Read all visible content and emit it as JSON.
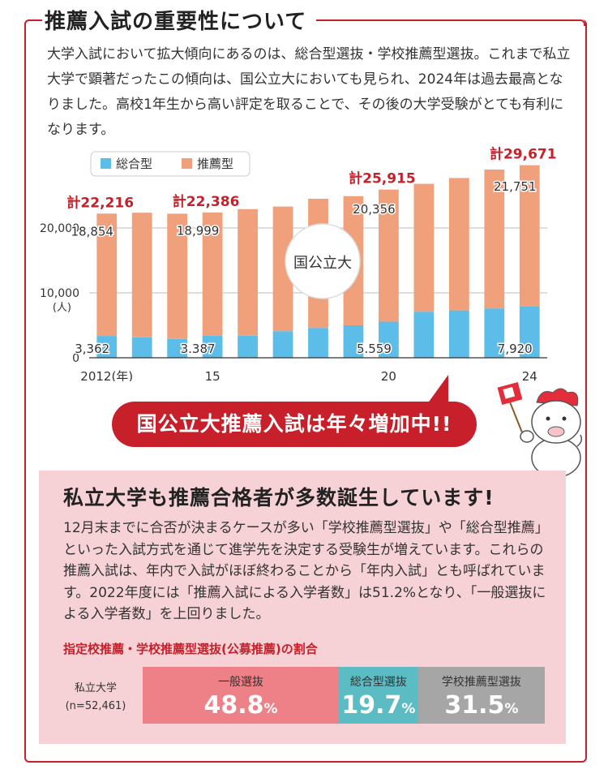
{
  "title": "推薦入試の重要性について",
  "intro": "大学入試において拡大傾向にあるのは、総合型選抜・学校推薦型選抜。これまで私立大学で顕著だったこの傾向は、国公立大においても見られ、2024年は過去最高となりました。高校1年生から高い評定を取ることで、その後の大学受験がとても有利になります。",
  "chart_data": {
    "type": "bar",
    "stacked": true,
    "categories": [
      "2012(年)",
      "",
      "",
      "15",
      "",
      "",
      "",
      "",
      "20",
      "",
      "",
      "",
      "24"
    ],
    "x": [
      2012,
      2013,
      2014,
      2015,
      2016,
      2017,
      2018,
      2019,
      2020,
      2021,
      2022,
      2023,
      2024
    ],
    "series": [
      {
        "name": "総合型",
        "color": "#5bbde8",
        "values": [
          3362,
          3150,
          2900,
          3387,
          3400,
          4100,
          4600,
          5000,
          5559,
          7100,
          7300,
          7600,
          7920
        ]
      },
      {
        "name": "推薦型",
        "color": "#f0a07a",
        "values": [
          18854,
          19200,
          19300,
          18999,
          19500,
          19200,
          19900,
          19900,
          20356,
          19700,
          20400,
          21400,
          21751
        ]
      }
    ],
    "totals": [
      "計22,216",
      "",
      "",
      "計22,386",
      "",
      "",
      "",
      "",
      "計25,915",
      "",
      "",
      "",
      "計29,671"
    ],
    "data_labels": {
      "series_0": [
        "3,362",
        "",
        "",
        "3.387",
        "",
        "",
        "",
        "",
        "5.559",
        "",
        "",
        "",
        "7,920"
      ],
      "series_1": [
        "18,854",
        "",
        "",
        "18,999",
        "",
        "",
        "",
        "",
        "20,356",
        "",
        "",
        "",
        "21,751"
      ]
    },
    "ylim": [
      0,
      30000
    ],
    "yticks": [
      "0",
      "10,000",
      "20,000"
    ],
    "yunit": "(人)",
    "legend_position": "top-left",
    "annotation": "国公立大"
  },
  "callout": "国公立大推薦入試は年々増加中!!",
  "private": {
    "title": "私立大学も推薦合格者が多数誕生しています!",
    "body": "12月末までに合否が決まるケースが多い「学校推薦型選抜」や「総合型推薦」といった入試方式を通じて進学先を決定する受験生が増えています。これらの推薦入試は、年内で入試がほぼ終わることから「年内入試」とも呼ばれています。2022年度には「推薦入試による入学者数」は51.2%となり、「一般選抜による入学者数」を上回りました。",
    "ratio_title": "指定校推薦・学校推薦型選抜(公募推薦)の割合",
    "ratio_label": "私立大学",
    "ratio_n": "(n=52,461)",
    "segments": [
      {
        "name": "一般選抜",
        "value": "48.8",
        "share": 48.8,
        "color": "#ee8088"
      },
      {
        "name": "総合型選抜",
        "value": "19.7",
        "share": 19.7,
        "color": "#5cbcc4"
      },
      {
        "name": "学校推薦型選抜",
        "value": "31.5",
        "share": 31.5,
        "color": "#a6a6a6"
      }
    ],
    "percent_sign": "%"
  }
}
